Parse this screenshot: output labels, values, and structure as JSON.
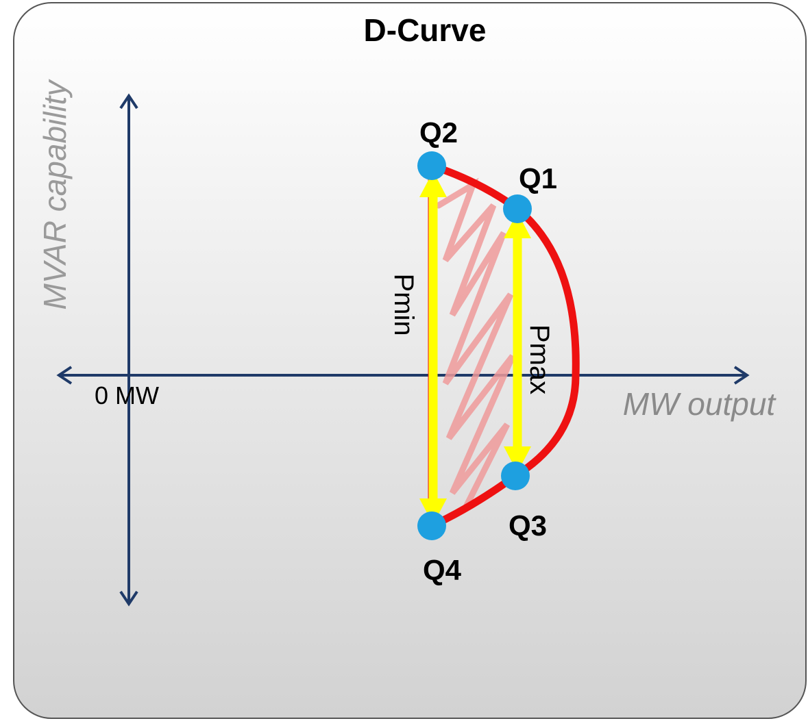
{
  "title": "D-Curve",
  "axes": {
    "y_label": "MVAR capability",
    "x_label": "MW output",
    "origin_label": "0 MW"
  },
  "points": [
    {
      "label": "Q1"
    },
    {
      "label": "Q2"
    },
    {
      "label": "Q3"
    },
    {
      "label": "Q4"
    }
  ],
  "arrows": [
    {
      "label": "Pmin"
    },
    {
      "label": "Pmax"
    }
  ]
}
